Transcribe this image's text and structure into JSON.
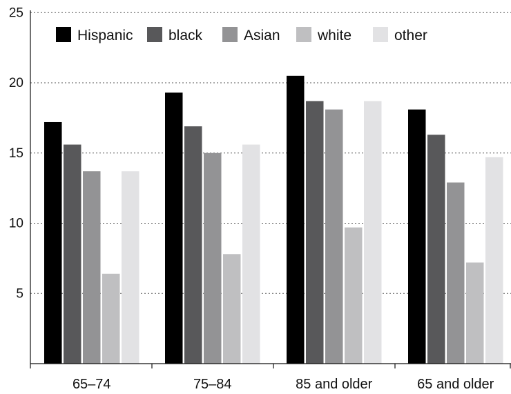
{
  "chart_data": {
    "type": "bar",
    "categories": [
      "65–74",
      "75–84",
      "85 and older",
      "65 and older"
    ],
    "series": [
      {
        "name": "Hispanic",
        "color": "#000000",
        "values": [
          17.2,
          19.3,
          20.5,
          18.1
        ]
      },
      {
        "name": "black",
        "color": "#58585a",
        "values": [
          15.6,
          16.9,
          18.7,
          16.3
        ]
      },
      {
        "name": "Asian",
        "color": "#939395",
        "values": [
          13.7,
          15.0,
          18.1,
          12.9
        ]
      },
      {
        "name": "white",
        "color": "#bfbfc1",
        "values": [
          6.4,
          7.8,
          9.7,
          7.2
        ]
      },
      {
        "name": "other",
        "color": "#e2e2e4",
        "values": [
          13.7,
          15.6,
          18.7,
          14.7
        ]
      }
    ],
    "ylim": [
      0,
      25
    ],
    "yticks": [
      "5",
      "10",
      "15",
      "20",
      "25"
    ],
    "grid": true,
    "legend_position": "top-left",
    "title": "",
    "xlabel": "",
    "ylabel": ""
  }
}
